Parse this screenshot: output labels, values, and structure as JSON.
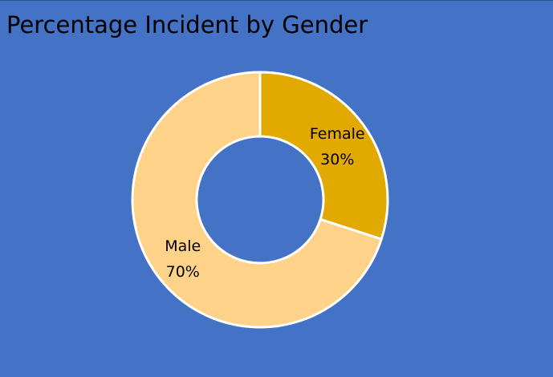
{
  "chart_data": {
    "type": "pie",
    "variant": "donut",
    "title": "Percentage Incident by Gender",
    "categories": [
      "Female",
      "Male"
    ],
    "values": [
      30,
      70
    ],
    "value_labels": [
      "30%",
      "70%"
    ],
    "colors": [
      "#E2A900",
      "#FFD28A"
    ],
    "background": "#4472C4",
    "slice_border": "#FFFFFF",
    "legend": "none"
  }
}
